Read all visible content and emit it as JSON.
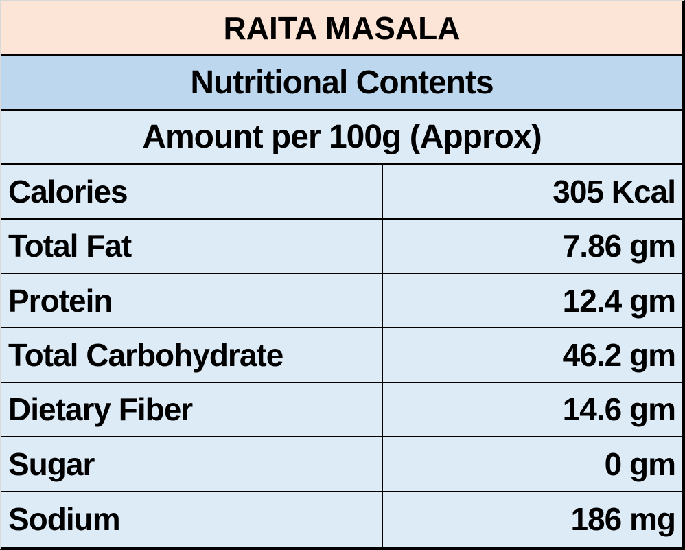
{
  "table": {
    "title": "RAITA MASALA",
    "subtitle": "Nutritional Contents",
    "amount_header": "Amount per 100g (Approx)",
    "rows": [
      {
        "label": "Calories",
        "value": "305 Kcal"
      },
      {
        "label": "Total Fat",
        "value": "7.86 gm"
      },
      {
        "label": "Protein",
        "value": "12.4 gm"
      },
      {
        "label": "Total Carbohydrate",
        "value": "46.2 gm"
      },
      {
        "label": "Dietary Fiber",
        "value": "14.6 gm"
      },
      {
        "label": "Sugar",
        "value": "0 gm"
      },
      {
        "label": "Sodium",
        "value": "186 mg"
      }
    ],
    "colors": {
      "title_bg": "#FCE4D6",
      "subtitle_bg": "#BDD7EE",
      "body_bg": "#DDEBF7",
      "border": "#000000",
      "text": "#000000"
    }
  }
}
